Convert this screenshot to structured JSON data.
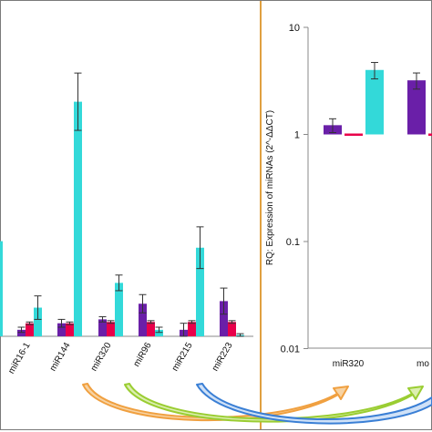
{
  "colors": {
    "series1": "#6a1fa8",
    "series2": "#e8004a",
    "series3": "#33d9d9",
    "divider": "#e0a040",
    "arrow_orange": "#f0a040",
    "arrow_green": "#9acd32",
    "arrow_blue": "#3a7fd5"
  },
  "chart_data": [
    {
      "type": "bar",
      "scale": "linear",
      "categories": [
        "miR16-1",
        "miR144",
        "miR320",
        "miR96",
        "miR215",
        "miR223"
      ],
      "series": [
        {
          "values": [
            0.5,
            1.0,
            1.3,
            2.5,
            0.5,
            2.7
          ],
          "errors": [
            0.2,
            0.3,
            0.2,
            0.7,
            0.5,
            1.0
          ]
        },
        {
          "values": [
            1.0,
            1.0,
            1.1,
            1.1,
            1.1,
            1.1
          ],
          "errors": [
            0.1,
            0.1,
            0.1,
            0.1,
            0.1,
            0.1
          ]
        },
        {
          "values": [
            2.2,
            18.0,
            4.1,
            0.5,
            6.8,
            0.1
          ],
          "errors": [
            0.9,
            2.2,
            0.6,
            0.2,
            1.6,
            0.1
          ]
        }
      ],
      "partial_leading_bar": 7.3,
      "title": "",
      "xlabel": "",
      "ylabel": ""
    },
    {
      "type": "bar",
      "scale": "log",
      "ylabel": "RQ: Expression of miRNAs (2^-ΔΔCT)",
      "ticks": [
        "10",
        "1",
        "0.1",
        "0.01"
      ],
      "ylim": [
        0.01,
        10
      ],
      "categories": [
        "miR320",
        "mo"
      ],
      "series": [
        {
          "values": [
            1.22,
            3.2
          ],
          "errors": [
            0.18,
            0.55
          ]
        },
        {
          "values": [
            1.0,
            1.0
          ],
          "errors": [
            0.0,
            0.0
          ]
        },
        {
          "values": [
            4.0,
            null
          ],
          "errors": [
            0.7,
            null
          ]
        }
      ]
    }
  ]
}
